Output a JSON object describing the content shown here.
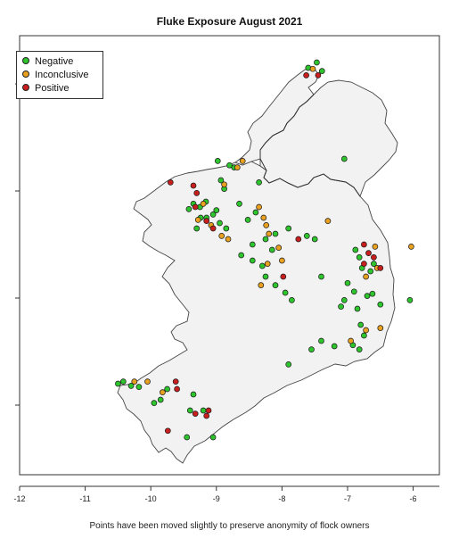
{
  "title": "Fluke Exposure August 2021",
  "caption": "Points have been moved slightly to preserve anonymity of flock owners",
  "colors": {
    "negative": "#2ec42e",
    "inconclusive": "#e8a020",
    "positive": "#c81e1e",
    "land": "#f2f2f2"
  },
  "legend": [
    {
      "label": "Negative",
      "color": "#2ec42e"
    },
    {
      "label": "Inconclusive",
      "color": "#e8a020"
    },
    {
      "label": "Positive",
      "color": "#c81e1e"
    }
  ],
  "chart_data": {
    "type": "scatter",
    "title": "Fluke Exposure August 2021",
    "xlim": [
      -12,
      -5.6
    ],
    "ylim": [
      51.35,
      55.45
    ],
    "x_ticks": [
      -12,
      -11,
      -10,
      -9,
      -8,
      -7,
      -6
    ],
    "x_tick_labels": [
      "-12",
      "-11",
      "-10",
      "-9",
      "-8",
      "-7",
      "-6"
    ],
    "y_ticks": [
      52,
      53,
      54,
      55
    ],
    "legend_position": "top-left",
    "series": [
      {
        "name": "Negative",
        "points": [
          [
            -7.6,
            55.15
          ],
          [
            -7.47,
            55.2
          ],
          [
            -7.39,
            55.12
          ],
          [
            -7.05,
            54.3
          ],
          [
            -8.98,
            54.28
          ],
          [
            -8.73,
            54.22
          ],
          [
            -8.8,
            54.24
          ],
          [
            -8.93,
            54.1
          ],
          [
            -8.88,
            54.02
          ],
          [
            -8.35,
            54.08
          ],
          [
            -9.16,
            53.9
          ],
          [
            -9.35,
            53.88
          ],
          [
            -9.42,
            53.83
          ],
          [
            -9.25,
            53.85
          ],
          [
            -9.15,
            53.75
          ],
          [
            -9.24,
            53.75
          ],
          [
            -9.3,
            53.65
          ],
          [
            -9.05,
            53.78
          ],
          [
            -9.0,
            53.82
          ],
          [
            -8.95,
            53.7
          ],
          [
            -8.85,
            53.65
          ],
          [
            -8.65,
            53.88
          ],
          [
            -8.52,
            53.73
          ],
          [
            -8.4,
            53.8
          ],
          [
            -8.25,
            53.55
          ],
          [
            -8.15,
            53.45
          ],
          [
            -8.45,
            53.35
          ],
          [
            -8.3,
            53.3
          ],
          [
            -8.25,
            53.2
          ],
          [
            -8.1,
            53.12
          ],
          [
            -7.95,
            53.05
          ],
          [
            -7.85,
            52.98
          ],
          [
            -7.62,
            53.58
          ],
          [
            -7.5,
            53.55
          ],
          [
            -7.4,
            53.2
          ],
          [
            -7.0,
            53.14
          ],
          [
            -6.9,
            53.06
          ],
          [
            -6.85,
            52.9
          ],
          [
            -6.8,
            52.75
          ],
          [
            -6.75,
            52.65
          ],
          [
            -6.92,
            52.56
          ],
          [
            -6.82,
            52.52
          ],
          [
            -7.05,
            52.98
          ],
          [
            -7.1,
            52.92
          ],
          [
            -6.7,
            53.02
          ],
          [
            -6.62,
            53.04
          ],
          [
            -6.5,
            52.94
          ],
          [
            -6.65,
            53.25
          ],
          [
            -6.6,
            53.32
          ],
          [
            -6.78,
            53.28
          ],
          [
            -6.82,
            53.38
          ],
          [
            -6.88,
            53.45
          ],
          [
            -6.05,
            52.98
          ],
          [
            -7.4,
            52.6
          ],
          [
            -7.55,
            52.52
          ],
          [
            -7.9,
            52.38
          ],
          [
            -7.2,
            52.55
          ],
          [
            -10.42,
            52.22
          ],
          [
            -10.3,
            52.18
          ],
          [
            -10.18,
            52.17
          ],
          [
            -10.5,
            52.2
          ],
          [
            -9.85,
            52.05
          ],
          [
            -9.95,
            52.02
          ],
          [
            -9.75,
            52.15
          ],
          [
            -9.35,
            52.1
          ],
          [
            -9.2,
            51.95
          ],
          [
            -9.05,
            51.7
          ],
          [
            -9.45,
            51.7
          ],
          [
            -9.4,
            51.95
          ],
          [
            -7.9,
            53.65
          ],
          [
            -8.1,
            53.6
          ],
          [
            -8.62,
            53.4
          ],
          [
            -8.45,
            53.5
          ]
        ]
      },
      {
        "name": "Inconclusive",
        "points": [
          [
            -7.53,
            55.14
          ],
          [
            -8.6,
            54.28
          ],
          [
            -8.68,
            54.22
          ],
          [
            -8.88,
            54.06
          ],
          [
            -9.2,
            53.88
          ],
          [
            -9.28,
            53.73
          ],
          [
            -9.08,
            53.68
          ],
          [
            -8.92,
            53.58
          ],
          [
            -8.82,
            53.55
          ],
          [
            -8.35,
            53.85
          ],
          [
            -8.28,
            53.75
          ],
          [
            -8.24,
            53.68
          ],
          [
            -8.2,
            53.6
          ],
          [
            -8.05,
            53.47
          ],
          [
            -8.22,
            53.32
          ],
          [
            -8.0,
            53.35
          ],
          [
            -8.32,
            53.12
          ],
          [
            -7.3,
            53.72
          ],
          [
            -6.72,
            53.2
          ],
          [
            -6.55,
            53.28
          ],
          [
            -6.95,
            52.6
          ],
          [
            -6.72,
            52.7
          ],
          [
            -6.5,
            52.72
          ],
          [
            -6.58,
            53.48
          ],
          [
            -6.03,
            53.48
          ],
          [
            -10.25,
            52.22
          ],
          [
            -10.05,
            52.22
          ],
          [
            -9.82,
            52.12
          ]
        ]
      },
      {
        "name": "Positive",
        "points": [
          [
            -7.63,
            55.08
          ],
          [
            -7.45,
            55.08
          ],
          [
            -9.7,
            54.08
          ],
          [
            -9.35,
            54.05
          ],
          [
            -9.3,
            53.98
          ],
          [
            -9.32,
            53.85
          ],
          [
            -9.15,
            53.72
          ],
          [
            -9.05,
            53.65
          ],
          [
            -7.75,
            53.55
          ],
          [
            -7.98,
            53.2
          ],
          [
            -6.75,
            53.5
          ],
          [
            -6.68,
            53.42
          ],
          [
            -6.6,
            53.38
          ],
          [
            -6.75,
            53.32
          ],
          [
            -6.5,
            53.28
          ],
          [
            -9.62,
            52.22
          ],
          [
            -9.6,
            52.15
          ],
          [
            -9.12,
            51.95
          ],
          [
            -9.15,
            51.9
          ],
          [
            -9.32,
            51.92
          ],
          [
            -9.74,
            51.76
          ]
        ]
      }
    ]
  }
}
